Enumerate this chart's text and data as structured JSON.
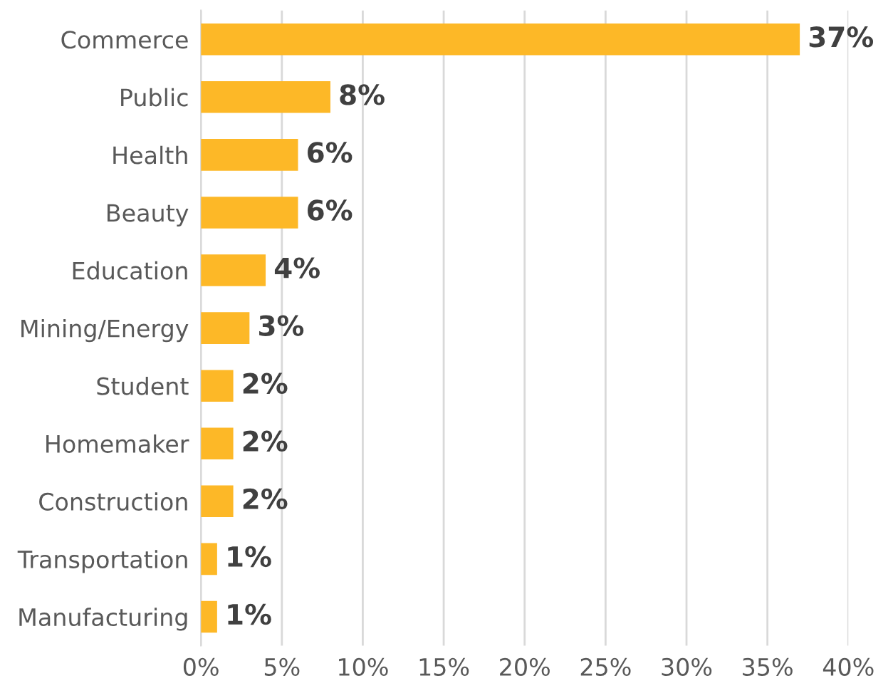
{
  "chart_data": {
    "type": "bar",
    "orientation": "horizontal",
    "categories": [
      "Commerce",
      "Public",
      "Health",
      "Beauty",
      "Education",
      "Mining/Energy",
      "Student",
      "Homemaker",
      "Construction",
      "Transportation",
      "Manufacturing"
    ],
    "values": [
      37,
      8,
      6,
      6,
      4,
      3,
      2,
      2,
      2,
      1,
      1
    ],
    "value_labels": [
      "37%",
      "8%",
      "6%",
      "6%",
      "4%",
      "3%",
      "2%",
      "2%",
      "2%",
      "1%",
      "1%"
    ],
    "color": "#fdb827",
    "xlim": [
      0,
      40
    ],
    "xticks": [
      {
        "value": 0,
        "label": "0%"
      },
      {
        "value": 5,
        "label": "5%"
      },
      {
        "value": 10,
        "label": "10%"
      },
      {
        "value": 15,
        "label": "15%"
      },
      {
        "value": 20,
        "label": "20%"
      },
      {
        "value": 25,
        "label": "25%"
      },
      {
        "value": 30,
        "label": "30%"
      },
      {
        "value": 35,
        "label": "35%"
      },
      {
        "value": 40,
        "label": "40%"
      }
    ],
    "grid": "x"
  }
}
